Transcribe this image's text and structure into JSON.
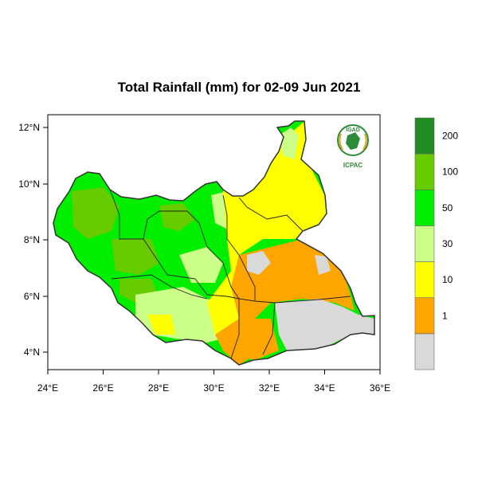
{
  "title": "Total Rainfall (mm) for 02-09 Jun 2021",
  "logo": {
    "top_text": "IGAD",
    "bottom_text": "ICPAC"
  },
  "axes": {
    "x_ticks": [
      "24°E",
      "26°E",
      "28°E",
      "30°E",
      "32°E",
      "34°E",
      "36°E"
    ],
    "y_ticks": [
      "12°N",
      "10°N",
      "8°N",
      "6°N",
      "4°N"
    ],
    "lon_range": [
      24,
      36
    ],
    "lat_range": [
      3.4,
      12.5
    ]
  },
  "legend": {
    "bins": [
      {
        "label": "",
        "color": "#d9d9d9"
      },
      {
        "label": "1",
        "color": "#ffa500"
      },
      {
        "label": "10",
        "color": "#ffff00"
      },
      {
        "label": "30",
        "color": "#ccff88"
      },
      {
        "label": "50",
        "color": "#00ee00"
      },
      {
        "label": "100",
        "color": "#66cc00"
      },
      {
        "label": "200",
        "color": "#228b22"
      }
    ]
  },
  "colors": {
    "no_rain": "#d9d9d9",
    "r1_10": "#ffa500",
    "r10_30": "#ffff00",
    "r30_50": "#ccff88",
    "r50_100": "#00ee00",
    "r100_200": "#66cc00",
    "r200": "#228b22"
  }
}
